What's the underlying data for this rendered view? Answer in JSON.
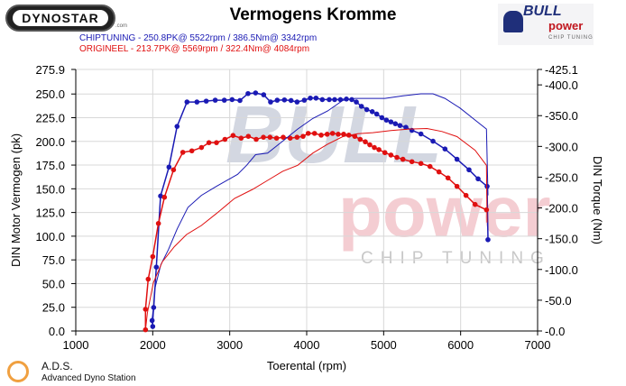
{
  "header": {
    "title": "Vermogens Kromme",
    "legend": [
      {
        "label": "CHIPTUNING  - 250.8PK@ 5522rpm / 386.5Nm@ 3342rpm",
        "color": "#1a1ab4"
      },
      {
        "label": "ORIGINEEL  - 213.7PK@ 5569rpm / 322.4Nm@ 4084rpm",
        "color": "#e01010"
      }
    ]
  },
  "logos": {
    "dynostar": "DYNOSTAR",
    "dynostar_suffix": ".com",
    "bull": "BULL",
    "power": "power",
    "chip": "CHIP TUNING",
    "watermark_bull": "BULL",
    "watermark_power": "power",
    "watermark_chip": "CHIP TUNING"
  },
  "footer": {
    "ads": "A.D.S.",
    "ads_full": "Advanced Dyno Station"
  },
  "chart_data": {
    "type": "line",
    "title": "Vermogens Kromme",
    "xlabel": "Toerental (rpm)",
    "ylabel": "DIN Motor Vermogen (pk)",
    "y2label": "DIN Torque (Nm)",
    "xlim": [
      1000,
      7000
    ],
    "ylim": [
      0,
      275.9
    ],
    "y2lim": [
      0,
      425.1
    ],
    "xticks": [
      "1000",
      "2000",
      "3000",
      "4000",
      "5000",
      "6000",
      "7000"
    ],
    "yticks": [
      "0.0",
      "25.0",
      "50.0",
      "75.0",
      "100.0",
      "125.0",
      "150.0",
      "175.0",
      "200.0",
      "225.0",
      "250.0",
      "275.9"
    ],
    "y2ticks": [
      "0.0",
      "50.0",
      "100.0",
      "150.0",
      "200.0",
      "250.0",
      "300.0",
      "350.0",
      "400.0",
      "425.1"
    ],
    "grid": true,
    "series": [
      {
        "name": "CHIPTUNING torque",
        "axis": "right",
        "color": "#1a1ab4",
        "markers": true,
        "x": [
          2000,
          1992,
          2012,
          2047,
          2102,
          2211,
          2316,
          2445,
          2574,
          2695,
          2812,
          2930,
          3031,
          3133,
          3238,
          3336,
          3441,
          3531,
          3617,
          3711,
          3797,
          3875,
          3969,
          4047,
          4121,
          4203,
          4293,
          4363,
          4438,
          4516,
          4586,
          4645,
          4711,
          4781,
          4852,
          4910,
          4977,
          5035,
          5094,
          5152,
          5211,
          5289,
          5367,
          5484,
          5641,
          5797,
          5953,
          6109,
          6227,
          6344,
          6355
        ],
        "y": [
          7.3,
          17.1,
          38.2,
          103.8,
          219.4,
          266.4,
          332.5,
          372.2,
          372.2,
          373.6,
          375.1,
          375.1,
          376.1,
          374.6,
          385.9,
          386.9,
          383.9,
          372.2,
          375.1,
          375.6,
          374.6,
          372.2,
          375.1,
          378.5,
          378.5,
          376.1,
          376.1,
          376.1,
          376.1,
          377.0,
          376.1,
          372.2,
          365.2,
          359.8,
          356.5,
          352.6,
          346.7,
          342.8,
          339.9,
          336.9,
          334.0,
          331.0,
          326.1,
          320.3,
          308.5,
          295.8,
          279.1,
          262.0,
          247.3,
          235.1,
          148.4
        ]
      },
      {
        "name": "ORIGINEEL torque",
        "axis": "right",
        "color": "#e01010",
        "markers": true,
        "x": [
          1906,
          1906,
          1941,
          2000,
          2074,
          2152,
          2270,
          2391,
          2508,
          2633,
          2730,
          2828,
          2938,
          3043,
          3148,
          3242,
          3344,
          3438,
          3523,
          3609,
          3695,
          3785,
          3875,
          3953,
          4020,
          4102,
          4188,
          4266,
          4336,
          4410,
          4480,
          4547,
          4625,
          4695,
          4762,
          4820,
          4879,
          4938,
          5016,
          5094,
          5172,
          5250,
          5367,
          5484,
          5602,
          5719,
          5836,
          5953,
          6070,
          6188,
          6336
        ],
        "y": [
          2.0,
          35.3,
          84.2,
          120.9,
          174.8,
          217.4,
          262.0,
          290.4,
          292.8,
          298.2,
          306.1,
          306.1,
          311.5,
          317.8,
          313.4,
          316.4,
          311.5,
          314.9,
          314.9,
          313.4,
          314.9,
          313.4,
          314.9,
          316.4,
          321.2,
          321.2,
          318.3,
          319.8,
          321.2,
          319.8,
          319.8,
          318.3,
          316.4,
          311.5,
          307.5,
          302.6,
          298.2,
          294.8,
          289.9,
          286.0,
          282.1,
          279.1,
          275.2,
          272.3,
          267.4,
          258.6,
          248.8,
          235.1,
          220.4,
          205.7,
          196.9
        ]
      },
      {
        "name": "CHIPTUNING power",
        "axis": "left",
        "color": "#1a1ab4",
        "markers": false,
        "x": [
          2000,
          2027,
          2105,
          2203,
          2320,
          2457,
          2633,
          2828,
          3102,
          3219,
          3336,
          3492,
          3688,
          3883,
          4078,
          4273,
          4469,
          4625,
          4859,
          5016,
          5250,
          5484,
          5641,
          5797,
          5992,
          6188,
          6336,
          6355
        ],
        "y": [
          4.8,
          44.5,
          69.9,
          85.8,
          108.1,
          130.3,
          143.1,
          152.6,
          165.3,
          174.8,
          186.0,
          187.6,
          200.3,
          213.0,
          224.1,
          232.1,
          243.2,
          245.4,
          245.4,
          245.4,
          248.0,
          250.2,
          250.2,
          245.4,
          235.2,
          222.5,
          213.0,
          143.1
        ]
      },
      {
        "name": "ORIGINEEL power",
        "axis": "left",
        "color": "#e01010",
        "markers": false,
        "x": [
          1906,
          1930,
          2008,
          2125,
          2281,
          2438,
          2633,
          2828,
          3063,
          3297,
          3492,
          3688,
          3883,
          4078,
          4273,
          4469,
          4664,
          4859,
          5094,
          5328,
          5563,
          5758,
          5953,
          6188,
          6336,
          6344
        ],
        "y": [
          1.3,
          19.1,
          50.9,
          73.1,
          89.0,
          101.7,
          111.3,
          124.0,
          139.9,
          149.4,
          158.9,
          168.5,
          174.8,
          187.6,
          197.1,
          205.0,
          208.2,
          209.2,
          211.4,
          213.0,
          213.6,
          210.4,
          205.0,
          190.7,
          174.8,
          114.4
        ]
      }
    ]
  }
}
